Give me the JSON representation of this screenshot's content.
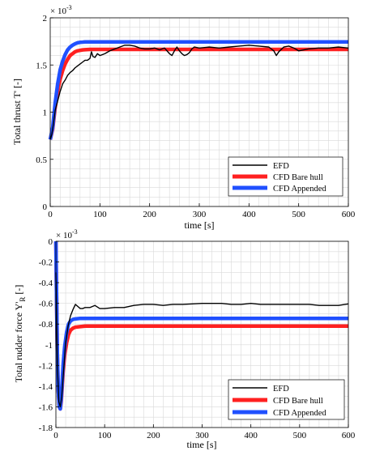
{
  "colors": {
    "efd": "#000000",
    "cfd_bare": "#ff2020",
    "cfd_appended": "#2050ff",
    "grid": "#d9d9d9",
    "axes": "#000000"
  },
  "chart_data": [
    {
      "type": "line",
      "title": "",
      "exponent_label": "× 10",
      "exponent_power": "-3",
      "xlabel": "time [s]",
      "ylabel": "Total thrust T' [-]",
      "xlim": [
        0,
        600
      ],
      "ylim": [
        0,
        2
      ],
      "x_ticks": [
        0,
        100,
        200,
        300,
        400,
        500,
        600
      ],
      "x_tick_labels": [
        "0",
        "100",
        "200",
        "300",
        "400",
        "500",
        "600"
      ],
      "y_ticks": [
        0,
        0.5,
        1,
        1.5,
        2
      ],
      "y_tick_labels": [
        "0",
        "0.5",
        "1",
        "1.5",
        "2"
      ],
      "grid": true,
      "legend_position": "bottom-right",
      "series": [
        {
          "name": "EFD",
          "x": [
            0,
            3,
            6,
            10,
            15,
            20,
            25,
            30,
            35,
            40,
            45,
            50,
            55,
            60,
            65,
            70,
            75,
            80,
            83,
            86,
            90,
            95,
            100,
            110,
            120,
            130,
            140,
            150,
            160,
            170,
            180,
            190,
            200,
            210,
            220,
            230,
            240,
            245,
            250,
            255,
            260,
            265,
            270,
            275,
            280,
            285,
            290,
            300,
            320,
            340,
            360,
            380,
            400,
            420,
            440,
            450,
            455,
            460,
            470,
            480,
            490,
            500,
            520,
            540,
            560,
            580,
            600
          ],
          "values": [
            0.71,
            0.76,
            0.86,
            1.02,
            1.12,
            1.22,
            1.3,
            1.34,
            1.39,
            1.42,
            1.44,
            1.47,
            1.49,
            1.51,
            1.53,
            1.55,
            1.55,
            1.57,
            1.64,
            1.59,
            1.58,
            1.62,
            1.6,
            1.62,
            1.65,
            1.67,
            1.69,
            1.71,
            1.71,
            1.7,
            1.68,
            1.67,
            1.67,
            1.68,
            1.66,
            1.68,
            1.62,
            1.6,
            1.65,
            1.69,
            1.65,
            1.62,
            1.6,
            1.61,
            1.63,
            1.67,
            1.69,
            1.68,
            1.69,
            1.68,
            1.69,
            1.7,
            1.71,
            1.7,
            1.69,
            1.65,
            1.6,
            1.64,
            1.69,
            1.7,
            1.68,
            1.65,
            1.67,
            1.68,
            1.68,
            1.69,
            1.68
          ]
        },
        {
          "name": "CFD Bare hull",
          "x": [
            0,
            5,
            10,
            15,
            20,
            25,
            30,
            35,
            40,
            45,
            50,
            55,
            60,
            65,
            70,
            80,
            90,
            100,
            150,
            200,
            300,
            400,
            500,
            600
          ],
          "values": [
            0.71,
            0.82,
            1.05,
            1.22,
            1.35,
            1.44,
            1.51,
            1.56,
            1.6,
            1.62,
            1.64,
            1.65,
            1.655,
            1.66,
            1.662,
            1.665,
            1.665,
            1.665,
            1.665,
            1.665,
            1.665,
            1.665,
            1.665,
            1.665
          ]
        },
        {
          "name": "CFD Appended",
          "x": [
            0,
            5,
            10,
            15,
            20,
            25,
            30,
            35,
            40,
            45,
            50,
            55,
            60,
            65,
            70,
            80,
            90,
            100,
            150,
            200,
            300,
            400,
            500,
            600
          ],
          "values": [
            0.71,
            0.84,
            1.1,
            1.3,
            1.45,
            1.54,
            1.61,
            1.66,
            1.69,
            1.71,
            1.725,
            1.735,
            1.74,
            1.742,
            1.745,
            1.745,
            1.745,
            1.745,
            1.745,
            1.745,
            1.745,
            1.745,
            1.745,
            1.745
          ]
        }
      ]
    },
    {
      "type": "line",
      "title": "",
      "exponent_label": "× 10",
      "exponent_power": "-3",
      "xlabel": "time [s]",
      "ylabel_main": "Total rudder force Y'",
      "ylabel_sub": "R",
      "ylabel_suffix": " [-]",
      "xlim": [
        0,
        600
      ],
      "ylim": [
        -1.8,
        0
      ],
      "x_ticks": [
        0,
        100,
        200,
        300,
        400,
        500,
        600
      ],
      "x_tick_labels": [
        "0",
        "100",
        "200",
        "300",
        "400",
        "500",
        "600"
      ],
      "y_ticks": [
        0,
        -0.2,
        -0.4,
        -0.6,
        -0.8,
        -1,
        -1.2,
        -1.4,
        -1.6,
        -1.8
      ],
      "y_tick_labels": [
        "0",
        "-0.2",
        "-0.4",
        "-0.6",
        "-0.8",
        "-1",
        "-1.2",
        "-1.4",
        "-1.6",
        "-1.8"
      ],
      "grid": true,
      "legend_position": "bottom-right",
      "series": [
        {
          "name": "EFD",
          "x": [
            0,
            3,
            6,
            9,
            12,
            15,
            20,
            25,
            30,
            35,
            40,
            45,
            50,
            55,
            60,
            65,
            70,
            75,
            80,
            90,
            100,
            120,
            140,
            160,
            180,
            200,
            220,
            240,
            260,
            280,
            300,
            320,
            340,
            360,
            380,
            400,
            420,
            440,
            460,
            480,
            500,
            520,
            540,
            560,
            580,
            600
          ],
          "values": [
            -0.3,
            -1.2,
            -1.55,
            -1.6,
            -1.5,
            -1.3,
            -0.98,
            -0.82,
            -0.72,
            -0.66,
            -0.61,
            -0.63,
            -0.65,
            -0.65,
            -0.64,
            -0.64,
            -0.64,
            -0.63,
            -0.62,
            -0.65,
            -0.65,
            -0.64,
            -0.64,
            -0.62,
            -0.61,
            -0.61,
            -0.62,
            -0.61,
            -0.61,
            -0.605,
            -0.6,
            -0.6,
            -0.6,
            -0.61,
            -0.61,
            -0.6,
            -0.61,
            -0.61,
            -0.61,
            -0.61,
            -0.61,
            -0.61,
            -0.62,
            -0.62,
            -0.62,
            -0.605
          ]
        },
        {
          "name": "CFD Bare hull",
          "x": [
            0,
            1,
            3,
            5,
            7,
            9,
            11,
            13,
            15,
            18,
            22,
            26,
            30,
            35,
            40,
            50,
            60,
            80,
            100,
            200,
            300,
            400,
            500,
            600
          ],
          "values": [
            0,
            -0.4,
            -1.1,
            -1.45,
            -1.6,
            -1.62,
            -1.55,
            -1.4,
            -1.25,
            -1.1,
            -0.98,
            -0.9,
            -0.86,
            -0.84,
            -0.83,
            -0.825,
            -0.82,
            -0.82,
            -0.82,
            -0.82,
            -0.82,
            -0.82,
            -0.82,
            -0.82
          ]
        },
        {
          "name": "CFD Appended",
          "x": [
            0,
            1,
            3,
            5,
            7,
            9,
            11,
            13,
            15,
            18,
            22,
            26,
            30,
            35,
            40,
            50,
            60,
            80,
            100,
            200,
            300,
            400,
            500,
            600
          ],
          "values": [
            0,
            -0.4,
            -1.1,
            -1.45,
            -1.6,
            -1.62,
            -1.52,
            -1.35,
            -1.18,
            -1.02,
            -0.88,
            -0.8,
            -0.77,
            -0.755,
            -0.75,
            -0.745,
            -0.745,
            -0.745,
            -0.745,
            -0.745,
            -0.745,
            -0.745,
            -0.745,
            -0.745
          ]
        }
      ]
    }
  ]
}
